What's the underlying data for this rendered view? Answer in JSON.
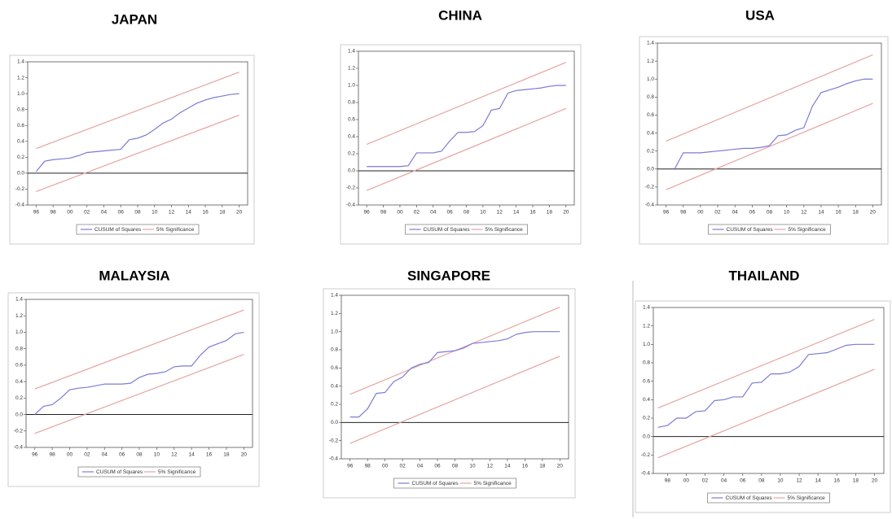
{
  "chart_data": [
    {
      "type": "line",
      "title": "JAPAN",
      "xlim": [
        1995,
        2021
      ],
      "ylim": [
        -0.4,
        1.4
      ],
      "xticks": [
        {
          "value": 1996,
          "label": "96"
        },
        {
          "value": 1998,
          "label": "98"
        },
        {
          "value": 2000,
          "label": "00"
        },
        {
          "value": 2002,
          "label": "02"
        },
        {
          "value": 2004,
          "label": "04"
        },
        {
          "value": 2006,
          "label": "06"
        },
        {
          "value": 2008,
          "label": "08"
        },
        {
          "value": 2010,
          "label": "10"
        },
        {
          "value": 2012,
          "label": "12"
        },
        {
          "value": 2014,
          "label": "14"
        },
        {
          "value": 2016,
          "label": "16"
        },
        {
          "value": 2018,
          "label": "18"
        },
        {
          "value": 2020,
          "label": "20"
        }
      ],
      "yticks": [
        -0.4,
        -0.2,
        {
          "value": 0,
          "label": "0.0"
        },
        0.2,
        0.4,
        0.6,
        0.8,
        {
          "value": 1,
          "label": "1.0"
        },
        1.2,
        1.4
      ],
      "series": [
        {
          "name": "CUSUM of Squares",
          "color": "#7b7bd6",
          "x": [
            1996,
            1997,
            1998,
            1999,
            2000,
            2001,
            2002,
            2003,
            2004,
            2005,
            2006,
            2007,
            2008,
            2009,
            2010,
            2011,
            2012,
            2013,
            2014,
            2015,
            2016,
            2017,
            2018,
            2019,
            2020
          ],
          "values": [
            0.02,
            0.15,
            0.17,
            0.18,
            0.19,
            0.22,
            0.26,
            0.27,
            0.28,
            0.29,
            0.3,
            0.42,
            0.44,
            0.48,
            0.55,
            0.63,
            0.68,
            0.76,
            0.82,
            0.88,
            0.92,
            0.95,
            0.97,
            0.99,
            1.0
          ]
        }
      ],
      "bands": [
        {
          "name": "5% Significance",
          "color": "#e6a3a3",
          "x": [
            1996,
            2020
          ],
          "upper": [
            0.31,
            1.27
          ],
          "lower": [
            -0.23,
            0.73
          ]
        }
      ]
    },
    {
      "type": "line",
      "title": "CHINA",
      "xlim": [
        1995,
        2021
      ],
      "ylim": [
        -0.4,
        1.4
      ],
      "xticks": [
        {
          "value": 1996,
          "label": "96"
        },
        {
          "value": 1998,
          "label": "98"
        },
        {
          "value": 2000,
          "label": "00"
        },
        {
          "value": 2002,
          "label": "02"
        },
        {
          "value": 2004,
          "label": "04"
        },
        {
          "value": 2006,
          "label": "06"
        },
        {
          "value": 2008,
          "label": "08"
        },
        {
          "value": 2010,
          "label": "10"
        },
        {
          "value": 2012,
          "label": "12"
        },
        {
          "value": 2014,
          "label": "14"
        },
        {
          "value": 2016,
          "label": "16"
        },
        {
          "value": 2018,
          "label": "18"
        },
        {
          "value": 2020,
          "label": "20"
        }
      ],
      "yticks": [
        -0.4,
        -0.2,
        {
          "value": 0,
          "label": "0.0"
        },
        0.2,
        0.4,
        0.6,
        0.8,
        {
          "value": 1,
          "label": "1.0"
        },
        1.2,
        1.4
      ],
      "series": [
        {
          "name": "CUSUM of Squares",
          "color": "#7b7bd6",
          "x": [
            1996,
            1997,
            1998,
            1999,
            2000,
            2001,
            2002,
            2003,
            2004,
            2005,
            2006,
            2007,
            2008,
            2009,
            2010,
            2011,
            2012,
            2013,
            2014,
            2015,
            2016,
            2017,
            2018,
            2019,
            2020
          ],
          "values": [
            0.05,
            0.05,
            0.05,
            0.05,
            0.05,
            0.06,
            0.21,
            0.21,
            0.21,
            0.23,
            0.35,
            0.45,
            0.45,
            0.46,
            0.53,
            0.71,
            0.73,
            0.91,
            0.94,
            0.95,
            0.96,
            0.97,
            0.99,
            1.0,
            1.0
          ]
        }
      ],
      "bands": [
        {
          "name": "5% Significance",
          "color": "#e6a3a3",
          "x": [
            1996,
            2020
          ],
          "upper": [
            0.31,
            1.27
          ],
          "lower": [
            -0.23,
            0.73
          ]
        }
      ]
    },
    {
      "type": "line",
      "title": "USA",
      "xlim": [
        1995,
        2021
      ],
      "ylim": [
        -0.4,
        1.4
      ],
      "xticks": [
        {
          "value": 1996,
          "label": "96"
        },
        {
          "value": 1998,
          "label": "98"
        },
        {
          "value": 2000,
          "label": "00"
        },
        {
          "value": 2002,
          "label": "02"
        },
        {
          "value": 2004,
          "label": "04"
        },
        {
          "value": 2006,
          "label": "06"
        },
        {
          "value": 2008,
          "label": "08"
        },
        {
          "value": 2010,
          "label": "10"
        },
        {
          "value": 2012,
          "label": "12"
        },
        {
          "value": 2014,
          "label": "14"
        },
        {
          "value": 2016,
          "label": "16"
        },
        {
          "value": 2018,
          "label": "18"
        },
        {
          "value": 2020,
          "label": "20"
        }
      ],
      "yticks": [
        -0.4,
        -0.2,
        {
          "value": 0,
          "label": "0.0"
        },
        0.2,
        0.4,
        0.6,
        0.8,
        {
          "value": 1,
          "label": "1.0"
        },
        1.2,
        1.4
      ],
      "series": [
        {
          "name": "CUSUM of Squares",
          "color": "#7b7bd6",
          "x": [
            1997,
            1998,
            1999,
            2000,
            2001,
            2002,
            2003,
            2004,
            2005,
            2006,
            2007,
            2008,
            2009,
            2010,
            2011,
            2012,
            2013,
            2014,
            2015,
            2016,
            2017,
            2018,
            2019,
            2020
          ],
          "values": [
            0.0,
            0.18,
            0.18,
            0.18,
            0.19,
            0.2,
            0.21,
            0.22,
            0.23,
            0.23,
            0.24,
            0.26,
            0.37,
            0.38,
            0.43,
            0.46,
            0.7,
            0.85,
            0.88,
            0.91,
            0.95,
            0.98,
            1.0,
            1.0
          ]
        }
      ],
      "bands": [
        {
          "name": "5% Significance",
          "color": "#e6a3a3",
          "x": [
            1996,
            2020
          ],
          "upper": [
            0.31,
            1.27
          ],
          "lower": [
            -0.23,
            0.73
          ]
        }
      ]
    },
    {
      "type": "line",
      "title": "MALAYSIA",
      "xlim": [
        1995,
        2021
      ],
      "ylim": [
        -0.4,
        1.4
      ],
      "xticks": [
        {
          "value": 1996,
          "label": "96"
        },
        {
          "value": 1998,
          "label": "98"
        },
        {
          "value": 2000,
          "label": "00"
        },
        {
          "value": 2002,
          "label": "02"
        },
        {
          "value": 2004,
          "label": "04"
        },
        {
          "value": 2006,
          "label": "06"
        },
        {
          "value": 2008,
          "label": "08"
        },
        {
          "value": 2010,
          "label": "10"
        },
        {
          "value": 2012,
          "label": "12"
        },
        {
          "value": 2014,
          "label": "14"
        },
        {
          "value": 2016,
          "label": "16"
        },
        {
          "value": 2018,
          "label": "18"
        },
        {
          "value": 2020,
          "label": "20"
        }
      ],
      "yticks": [
        -0.4,
        -0.2,
        {
          "value": 0,
          "label": "0.0"
        },
        0.2,
        0.4,
        0.6,
        0.8,
        {
          "value": 1,
          "label": "1.0"
        },
        1.2,
        1.4
      ],
      "series": [
        {
          "name": "CUSUM of Squares",
          "color": "#7b7bd6",
          "x": [
            1996,
            1997,
            1998,
            1999,
            2000,
            2001,
            2002,
            2003,
            2004,
            2005,
            2006,
            2007,
            2008,
            2009,
            2010,
            2011,
            2012,
            2013,
            2014,
            2015,
            2016,
            2017,
            2018,
            2019,
            2020
          ],
          "values": [
            0.0,
            0.1,
            0.12,
            0.2,
            0.3,
            0.32,
            0.33,
            0.35,
            0.37,
            0.37,
            0.37,
            0.38,
            0.45,
            0.49,
            0.5,
            0.52,
            0.58,
            0.59,
            0.59,
            0.72,
            0.82,
            0.86,
            0.9,
            0.98,
            1.0
          ]
        }
      ],
      "bands": [
        {
          "name": "5% Significance",
          "color": "#e6a3a3",
          "x": [
            1996,
            2020
          ],
          "upper": [
            0.31,
            1.27
          ],
          "lower": [
            -0.23,
            0.73
          ]
        }
      ]
    },
    {
      "type": "line",
      "title": "SINGAPORE",
      "xlim": [
        1995,
        2021
      ],
      "ylim": [
        -0.4,
        1.4
      ],
      "xticks": [
        {
          "value": 1996,
          "label": "96"
        },
        {
          "value": 1998,
          "label": "98"
        },
        {
          "value": 2000,
          "label": "00"
        },
        {
          "value": 2002,
          "label": "02"
        },
        {
          "value": 2004,
          "label": "04"
        },
        {
          "value": 2006,
          "label": "06"
        },
        {
          "value": 2008,
          "label": "08"
        },
        {
          "value": 2010,
          "label": "10"
        },
        {
          "value": 2012,
          "label": "12"
        },
        {
          "value": 2014,
          "label": "14"
        },
        {
          "value": 2016,
          "label": "16"
        },
        {
          "value": 2018,
          "label": "18"
        },
        {
          "value": 2020,
          "label": "20"
        }
      ],
      "yticks": [
        -0.4,
        -0.2,
        {
          "value": 0,
          "label": "0.0"
        },
        0.2,
        0.4,
        0.6,
        0.8,
        {
          "value": 1,
          "label": "1.0"
        },
        1.2,
        1.4
      ],
      "series": [
        {
          "name": "CUSUM of Squares",
          "color": "#7b7bd6",
          "x": [
            1996,
            1997,
            1998,
            1999,
            2000,
            2001,
            2002,
            2003,
            2004,
            2005,
            2006,
            2007,
            2008,
            2009,
            2010,
            2011,
            2012,
            2013,
            2014,
            2015,
            2016,
            2017,
            2018,
            2019,
            2020
          ],
          "values": [
            0.06,
            0.06,
            0.15,
            0.32,
            0.33,
            0.45,
            0.5,
            0.6,
            0.64,
            0.66,
            0.77,
            0.78,
            0.79,
            0.82,
            0.87,
            0.88,
            0.89,
            0.9,
            0.92,
            0.97,
            0.99,
            1.0,
            1.0,
            1.0,
            1.0
          ]
        }
      ],
      "bands": [
        {
          "name": "5% Significance",
          "color": "#e6a3a3",
          "x": [
            1996,
            2020
          ],
          "upper": [
            0.31,
            1.27
          ],
          "lower": [
            -0.23,
            0.73
          ]
        }
      ]
    },
    {
      "type": "line",
      "title": "THAILAND",
      "xlim": [
        1996.5,
        2021
      ],
      "ylim": [
        -0.4,
        1.4
      ],
      "xticks": [
        {
          "value": 1998,
          "label": "98"
        },
        {
          "value": 2000,
          "label": "00"
        },
        {
          "value": 2002,
          "label": "02"
        },
        {
          "value": 2004,
          "label": "04"
        },
        {
          "value": 2006,
          "label": "06"
        },
        {
          "value": 2008,
          "label": "08"
        },
        {
          "value": 2010,
          "label": "10"
        },
        {
          "value": 2012,
          "label": "12"
        },
        {
          "value": 2014,
          "label": "14"
        },
        {
          "value": 2016,
          "label": "16"
        },
        {
          "value": 2018,
          "label": "18"
        },
        {
          "value": 2020,
          "label": "20"
        }
      ],
      "yticks": [
        -0.4,
        -0.2,
        {
          "value": 0,
          "label": "0.0"
        },
        0.2,
        0.4,
        0.6,
        0.8,
        {
          "value": 1,
          "label": "1.0"
        },
        1.2,
        1.4
      ],
      "series": [
        {
          "name": "CUSUM of Squares",
          "color": "#7b7bd6",
          "x": [
            1997,
            1998,
            1999,
            2000,
            2001,
            2002,
            2003,
            2004,
            2005,
            2006,
            2007,
            2008,
            2009,
            2010,
            2011,
            2012,
            2013,
            2014,
            2015,
            2016,
            2017,
            2018,
            2019,
            2020
          ],
          "values": [
            0.1,
            0.12,
            0.2,
            0.2,
            0.27,
            0.28,
            0.39,
            0.4,
            0.43,
            0.43,
            0.58,
            0.59,
            0.68,
            0.68,
            0.7,
            0.76,
            0.89,
            0.9,
            0.91,
            0.95,
            0.99,
            1.0,
            1.0,
            1.0
          ]
        }
      ],
      "bands": [
        {
          "name": "5% Significance",
          "color": "#e6a3a3",
          "x": [
            1997,
            2020
          ],
          "upper": [
            0.31,
            1.27
          ],
          "lower": [
            -0.23,
            0.73
          ]
        }
      ]
    }
  ]
}
